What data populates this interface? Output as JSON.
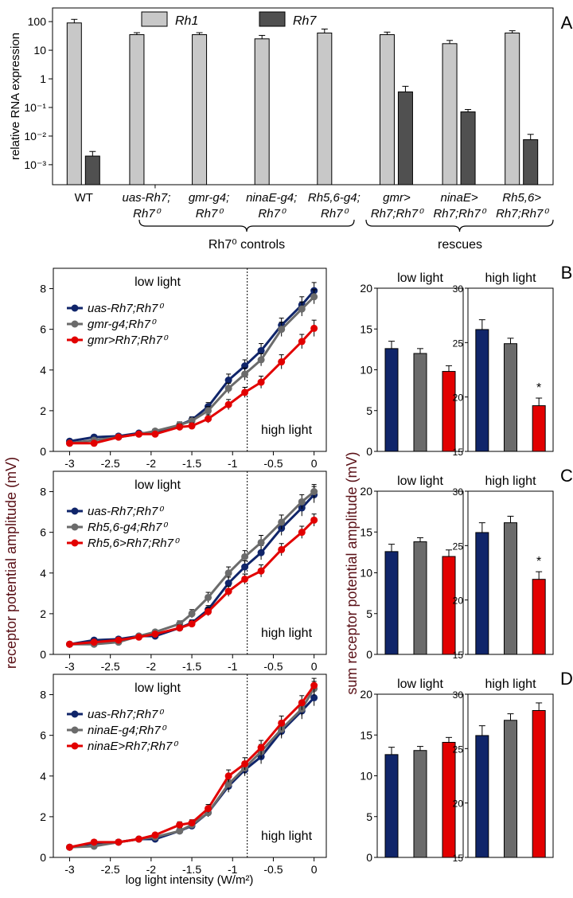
{
  "figure": {
    "panel_letters": {
      "A": "A",
      "B": "B",
      "C": "C",
      "D": "D"
    },
    "colors": {
      "rh1": "#c8c8c8",
      "rh7": "#505050",
      "navy": "#10256a",
      "gray": "#6b6b6b",
      "red": "#e20000",
      "axis": "#000000"
    },
    "labels": {
      "ylabel_A": "relative RNA expression",
      "ylabel_left": "receptor potential amplitude (mV)",
      "ylabel_right": "sum receptor potential amplitude (mV)",
      "xlabel_left": "log light intensity (W/m²)",
      "low_light": "low light",
      "high_light": "high light",
      "group_controls": "Rh7⁰ controls",
      "group_rescues": "rescues",
      "sig_star": "*"
    }
  },
  "chart_data": [
    {
      "id": "A",
      "type": "bar",
      "title": "",
      "ylabel": "relative RNA expression",
      "yscale": "log",
      "ylim": [
        0.0002,
        300
      ],
      "yticklabels": [
        "100",
        "10",
        "1",
        "10⁻¹",
        "10⁻²",
        "10⁻³"
      ],
      "categories": [
        {
          "l1": "WT",
          "l2": ""
        },
        {
          "l1": "uas-Rh7;",
          "l2": "Rh7⁰"
        },
        {
          "l1": "gmr-g4;",
          "l2": "Rh7⁰"
        },
        {
          "l1": "ninaE-g4;",
          "l2": "Rh7⁰"
        },
        {
          "l1": "Rh5,6-g4;",
          "l2": "Rh7⁰"
        },
        {
          "l1": "gmr>",
          "l2": "Rh7;Rh7⁰"
        },
        {
          "l1": "ninaE>",
          "l2": "Rh7;Rh7⁰"
        },
        {
          "l1": "Rh5,6>",
          "l2": "Rh7;Rh7⁰"
        }
      ],
      "legend": [
        "Rh1",
        "Rh7"
      ],
      "legend_position": "top",
      "series": [
        {
          "name": "Rh1",
          "color": "#c8c8c8",
          "values": [
            90,
            35,
            35,
            25,
            40,
            35,
            17,
            40
          ],
          "err": [
            30,
            6,
            6,
            8,
            15,
            8,
            5,
            8
          ]
        },
        {
          "name": "Rh7",
          "color": "#505050",
          "values": [
            0.002,
            0.00015,
            null,
            null,
            null,
            0.35,
            0.07,
            0.0075
          ],
          "err": [
            0.0009,
            5e-05,
            null,
            null,
            null,
            0.2,
            0.015,
            0.004
          ]
        }
      ]
    },
    {
      "id": "B-lines",
      "type": "line",
      "xlabel": "log light intensity (W/m²)",
      "ylabel": "receptor potential amplitude (mV)",
      "xlim": [
        -3.2,
        0.15
      ],
      "ylim": [
        0,
        9
      ],
      "xticks": [
        -3,
        -2.5,
        -2,
        -1.5,
        -1,
        -0.5,
        0
      ],
      "yticks": [
        0,
        2,
        4,
        6,
        8
      ],
      "divider_x": -0.82,
      "x": [
        -3,
        -2.7,
        -2.4,
        -2.15,
        -1.95,
        -1.65,
        -1.5,
        -1.3,
        -1.05,
        -0.85,
        -0.65,
        -0.4,
        -0.15,
        0
      ],
      "series": [
        {
          "name": "uas-Rh7;Rh7⁰",
          "color": "#10256a",
          "values": [
            0.5,
            0.7,
            0.75,
            0.9,
            0.9,
            1.3,
            1.55,
            2.2,
            3.5,
            4.2,
            4.95,
            6.2,
            7.2,
            7.9
          ],
          "err": [
            0.1,
            0.1,
            0.1,
            0.1,
            0.1,
            0.15,
            0.15,
            0.2,
            0.3,
            0.3,
            0.35,
            0.35,
            0.4,
            0.4
          ]
        },
        {
          "name": "gmr-g4;Rh7⁰",
          "color": "#6b6b6b",
          "values": [
            0.4,
            0.55,
            0.7,
            0.85,
            1.0,
            1.3,
            1.5,
            2.0,
            3.1,
            3.8,
            4.5,
            6.0,
            7.0,
            7.6
          ],
          "err": [
            0.1,
            0.1,
            0.1,
            0.1,
            0.1,
            0.15,
            0.15,
            0.2,
            0.25,
            0.3,
            0.3,
            0.35,
            0.35,
            0.35
          ]
        },
        {
          "name": "gmr>Rh7;Rh7⁰",
          "color": "#e20000",
          "values": [
            0.4,
            0.4,
            0.7,
            0.85,
            0.85,
            1.2,
            1.25,
            1.6,
            2.3,
            2.9,
            3.4,
            4.4,
            5.4,
            6.05
          ],
          "err": [
            0.1,
            0.1,
            0.1,
            0.1,
            0.1,
            0.15,
            0.15,
            0.2,
            0.25,
            0.25,
            0.3,
            0.35,
            0.35,
            0.4
          ]
        }
      ]
    },
    {
      "id": "B-bars",
      "type": "bar",
      "groups": [
        {
          "title": "low light",
          "ylim": [
            0,
            20
          ],
          "yticks": [
            0,
            5,
            10,
            15,
            20
          ],
          "values": [
            12.6,
            12.0,
            9.8
          ],
          "err": [
            0.9,
            0.6,
            0.7
          ],
          "stars": [
            false,
            false,
            false
          ]
        },
        {
          "title": "high light",
          "ylim": [
            15,
            30
          ],
          "yticks": [
            15,
            20,
            25,
            30
          ],
          "values": [
            26.2,
            24.9,
            19.2
          ],
          "err": [
            0.9,
            0.5,
            0.7
          ],
          "stars": [
            false,
            false,
            true
          ]
        }
      ],
      "colors": [
        "#10256a",
        "#6b6b6b",
        "#e20000"
      ]
    },
    {
      "id": "C-lines",
      "type": "line",
      "xlabel": "log light intensity (W/m²)",
      "ylabel": "receptor potential amplitude (mV)",
      "xlim": [
        -3.2,
        0.15
      ],
      "ylim": [
        0,
        9
      ],
      "xticks": [
        -3,
        -2.5,
        -2,
        -1.5,
        -1,
        -0.5,
        0
      ],
      "yticks": [
        0,
        2,
        4,
        6,
        8
      ],
      "divider_x": -0.82,
      "x": [
        -3,
        -2.7,
        -2.4,
        -2.15,
        -1.95,
        -1.65,
        -1.5,
        -1.3,
        -1.05,
        -0.85,
        -0.65,
        -0.4,
        -0.15,
        0
      ],
      "series": [
        {
          "name": "uas-Rh7;Rh7⁰",
          "color": "#10256a",
          "values": [
            0.5,
            0.7,
            0.75,
            0.9,
            0.9,
            1.3,
            1.55,
            2.2,
            3.5,
            4.3,
            5.0,
            6.2,
            7.2,
            7.85
          ],
          "err": [
            0.1,
            0.1,
            0.1,
            0.1,
            0.1,
            0.15,
            0.15,
            0.2,
            0.3,
            0.3,
            0.35,
            0.35,
            0.4,
            0.4
          ]
        },
        {
          "name": "Rh5,6-g4;Rh7⁰",
          "color": "#6b6b6b",
          "values": [
            0.5,
            0.5,
            0.6,
            0.9,
            1.1,
            1.5,
            2.0,
            2.8,
            4.0,
            4.8,
            5.5,
            6.5,
            7.5,
            8.0
          ],
          "err": [
            0.1,
            0.1,
            0.1,
            0.1,
            0.1,
            0.15,
            0.2,
            0.25,
            0.3,
            0.3,
            0.35,
            0.35,
            0.35,
            0.35
          ]
        },
        {
          "name": "Rh5,6>Rh7;Rh7⁰",
          "color": "#e20000",
          "values": [
            0.5,
            0.6,
            0.7,
            0.85,
            1.0,
            1.3,
            1.5,
            2.1,
            3.1,
            3.7,
            4.1,
            5.15,
            6.0,
            6.6
          ],
          "err": [
            0.1,
            0.1,
            0.1,
            0.1,
            0.1,
            0.15,
            0.15,
            0.2,
            0.25,
            0.25,
            0.3,
            0.3,
            0.3,
            0.3
          ]
        }
      ]
    },
    {
      "id": "C-bars",
      "type": "bar",
      "groups": [
        {
          "title": "low light",
          "ylim": [
            0,
            20
          ],
          "yticks": [
            0,
            5,
            10,
            15,
            20
          ],
          "values": [
            12.6,
            13.8,
            12.0
          ],
          "err": [
            0.9,
            0.5,
            0.8
          ],
          "stars": [
            false,
            false,
            false
          ]
        },
        {
          "title": "high light",
          "ylim": [
            15,
            30
          ],
          "yticks": [
            15,
            20,
            25,
            30
          ],
          "values": [
            26.2,
            27.1,
            21.9
          ],
          "err": [
            0.9,
            0.6,
            0.7
          ],
          "stars": [
            false,
            false,
            true
          ]
        }
      ],
      "colors": [
        "#10256a",
        "#6b6b6b",
        "#e20000"
      ]
    },
    {
      "id": "D-lines",
      "type": "line",
      "xlabel": "log light intensity (W/m²)",
      "ylabel": "receptor potential amplitude (mV)",
      "xlim": [
        -3.2,
        0.15
      ],
      "ylim": [
        0,
        9
      ],
      "xticks": [
        -3,
        -2.5,
        -2,
        -1.5,
        -1,
        -0.5,
        0
      ],
      "yticks": [
        0,
        2,
        4,
        6,
        8
      ],
      "divider_x": -0.82,
      "x": [
        -3,
        -2.7,
        -2.4,
        -2.15,
        -1.95,
        -1.65,
        -1.5,
        -1.3,
        -1.05,
        -0.85,
        -0.65,
        -0.4,
        -0.15,
        0
      ],
      "series": [
        {
          "name": "uas-Rh7;Rh7⁰",
          "color": "#10256a",
          "values": [
            0.5,
            0.7,
            0.75,
            0.9,
            0.9,
            1.3,
            1.55,
            2.2,
            3.5,
            4.3,
            4.95,
            6.2,
            7.2,
            7.85
          ],
          "err": [
            0.1,
            0.1,
            0.1,
            0.1,
            0.1,
            0.15,
            0.15,
            0.2,
            0.3,
            0.3,
            0.35,
            0.35,
            0.4,
            0.4
          ]
        },
        {
          "name": "ninaE-g4;Rh7⁰",
          "color": "#6b6b6b",
          "values": [
            0.5,
            0.55,
            0.75,
            0.9,
            1.0,
            1.3,
            1.6,
            2.2,
            3.6,
            4.4,
            5.2,
            6.3,
            7.3,
            8.3
          ],
          "err": [
            0.1,
            0.1,
            0.1,
            0.1,
            0.1,
            0.15,
            0.15,
            0.2,
            0.3,
            0.3,
            0.35,
            0.35,
            0.35,
            0.35
          ]
        },
        {
          "name": "ninaE>Rh7;Rh7⁰",
          "color": "#e20000",
          "values": [
            0.5,
            0.75,
            0.75,
            0.9,
            1.1,
            1.6,
            1.7,
            2.4,
            4.0,
            4.6,
            5.4,
            6.6,
            7.6,
            8.45
          ],
          "err": [
            0.1,
            0.1,
            0.1,
            0.1,
            0.1,
            0.15,
            0.15,
            0.2,
            0.3,
            0.3,
            0.35,
            0.35,
            0.35,
            0.35
          ]
        }
      ]
    },
    {
      "id": "D-bars",
      "type": "bar",
      "groups": [
        {
          "title": "low light",
          "ylim": [
            0,
            20
          ],
          "yticks": [
            0,
            5,
            10,
            15,
            20
          ],
          "values": [
            12.6,
            13.1,
            14.1
          ],
          "err": [
            0.9,
            0.5,
            0.6
          ],
          "stars": [
            false,
            false,
            false
          ]
        },
        {
          "title": "high light",
          "ylim": [
            15,
            30
          ],
          "yticks": [
            15,
            20,
            25,
            30
          ],
          "values": [
            26.2,
            27.6,
            28.5
          ],
          "err": [
            0.9,
            0.6,
            0.7
          ],
          "stars": [
            false,
            false,
            false
          ]
        }
      ],
      "colors": [
        "#10256a",
        "#6b6b6b",
        "#e20000"
      ]
    }
  ]
}
